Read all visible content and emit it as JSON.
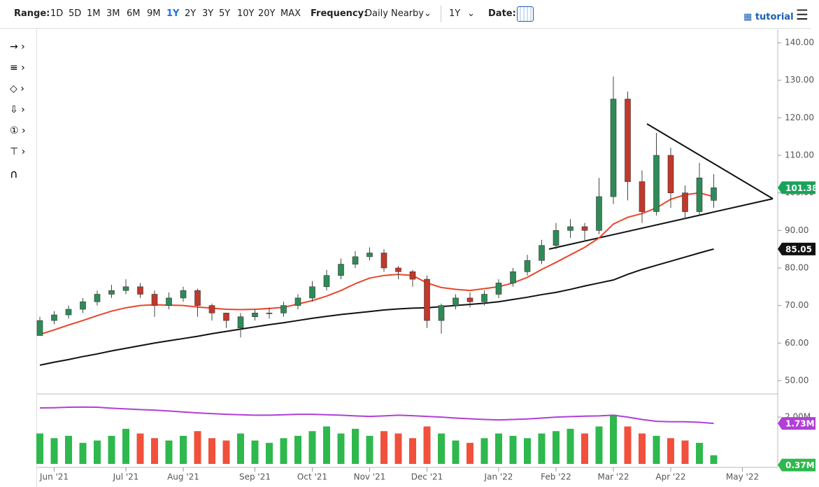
{
  "toolbar": {
    "range_label": "Range:",
    "ranges": [
      "1D",
      "5D",
      "1M",
      "3M",
      "6M",
      "9M",
      "1Y",
      "2Y",
      "3Y",
      "5Y",
      "10Y",
      "20Y",
      "MAX"
    ],
    "frequency_label": "Frequency:",
    "frequency": "Daily Nearby",
    "period": "1Y",
    "date_label": "Date:",
    "tutorial": "tutorial"
  },
  "chart_data": [
    {
      "type": "candlestick",
      "categories": [
        null,
        "Jun '21",
        null,
        null,
        null,
        null,
        "Jul '21",
        null,
        null,
        null,
        "Aug '21",
        null,
        null,
        null,
        null,
        "Sep '21",
        null,
        null,
        null,
        "Oct '21",
        null,
        null,
        null,
        "Nov '21",
        null,
        null,
        null,
        "Dec '21",
        null,
        null,
        null,
        null,
        "Jan '22",
        null,
        null,
        null,
        "Feb '22",
        null,
        null,
        null,
        "Mar '22",
        null,
        null,
        null,
        "Apr '22",
        null,
        null,
        null,
        null,
        "May '22"
      ],
      "open": [
        62,
        66,
        67.5,
        69,
        71,
        73,
        74,
        75,
        73,
        70,
        72,
        74,
        70,
        68,
        64,
        67,
        68,
        68,
        70,
        72,
        75,
        78,
        81,
        83,
        84,
        80,
        79,
        77,
        66,
        70,
        72,
        71,
        73,
        76,
        79,
        82,
        86,
        90,
        91,
        90,
        99,
        125,
        103,
        95,
        110,
        100,
        95,
        98,
        null,
        null
      ],
      "high": [
        67,
        68.5,
        70,
        72,
        74,
        75.5,
        77,
        76,
        74,
        73.5,
        75,
        74.5,
        70.5,
        68,
        68,
        69,
        69.5,
        71,
        73,
        76.5,
        79.5,
        82.5,
        84.5,
        85.5,
        85,
        80.5,
        79.5,
        78,
        70.5,
        73,
        73.5,
        74,
        77,
        80,
        83.5,
        87.5,
        92,
        93,
        92,
        104,
        131,
        127,
        106,
        116,
        112,
        102,
        108,
        105,
        null,
        null
      ],
      "low": [
        62,
        65,
        66.5,
        68,
        70,
        72,
        73,
        72,
        67,
        69,
        71,
        67,
        66,
        64,
        61.5,
        66,
        66.5,
        67,
        69,
        71,
        74,
        77,
        80,
        82,
        79,
        77,
        75,
        64,
        62.5,
        69,
        69.5,
        70,
        72,
        75,
        78,
        81,
        85,
        88,
        87,
        89,
        97,
        98,
        92,
        94,
        96,
        93,
        94,
        96,
        null,
        null
      ],
      "close": [
        66,
        67.5,
        69,
        71,
        73,
        74,
        75,
        73,
        70,
        72,
        74,
        70,
        68,
        66,
        67,
        68,
        68,
        70,
        72,
        75,
        78,
        81,
        83,
        84,
        80,
        79,
        77,
        66,
        70,
        72,
        71,
        73,
        76,
        79,
        82,
        86,
        90,
        91,
        90,
        99,
        125,
        103,
        95,
        110,
        100,
        95,
        104,
        101.38,
        null,
        null
      ],
      "series": [
        {
          "color": "#e8462a",
          "values": [
            62.3,
            63.5,
            64.8,
            66,
            67.3,
            68.5,
            69.4,
            70,
            70.2,
            70.1,
            70,
            69.6,
            69.3,
            69,
            68.9,
            69,
            69.2,
            69.5,
            70.4,
            71.3,
            72.5,
            74,
            75.8,
            77.3,
            78,
            78.3,
            78,
            76,
            74.8,
            74.3,
            74,
            74.5,
            75,
            76,
            77.5,
            79.6,
            81.5,
            83.5,
            85.5,
            88,
            91.7,
            93.5,
            94.5,
            96,
            98.3,
            99.5,
            100,
            99,
            null,
            null
          ]
        },
        {
          "color": "#111111",
          "values": [
            54.1,
            54.9,
            55.6,
            56.4,
            57.1,
            57.9,
            58.6,
            59.3,
            60,
            60.6,
            61.2,
            61.8,
            62.5,
            63.1,
            63.7,
            64.3,
            64.9,
            65.4,
            66,
            66.6,
            67.1,
            67.6,
            68,
            68.4,
            68.8,
            69.1,
            69.3,
            69.4,
            69.7,
            70,
            70.3,
            70.6,
            71,
            71.6,
            72.2,
            72.9,
            73.5,
            74.3,
            75.2,
            76,
            76.8,
            78.3,
            79.6,
            80.7,
            81.8,
            82.9,
            84,
            85.05,
            null,
            null
          ]
        }
      ],
      "up_color": "#2e8b57",
      "down_color": "#c0392b",
      "last_color": "#19a35a",
      "ylim": [
        47,
        143
      ],
      "yticks": [
        {
          "value": 50,
          "label": "50.00"
        },
        {
          "value": 60,
          "label": "60.00"
        },
        {
          "value": 70,
          "label": "70.00"
        },
        {
          "value": 80,
          "label": "80.00"
        },
        {
          "value": 90,
          "label": "90.00"
        },
        {
          "value": 100,
          "label": "100.00"
        },
        {
          "value": 110,
          "label": "110.00"
        },
        {
          "value": 120,
          "label": "120.00"
        },
        {
          "value": 130,
          "label": "130.00"
        },
        {
          "value": 140,
          "label": "140.00"
        }
      ]
    },
    {
      "type": "volume",
      "values": [
        1.3,
        1.1,
        1.2,
        0.9,
        1.0,
        1.2,
        1.5,
        1.3,
        1.1,
        1.0,
        1.2,
        1.4,
        1.1,
        1.0,
        1.3,
        1.0,
        0.9,
        1.1,
        1.2,
        1.4,
        1.6,
        1.3,
        1.5,
        1.2,
        1.4,
        1.3,
        1.1,
        1.6,
        1.3,
        1.0,
        0.9,
        1.1,
        1.3,
        1.2,
        1.1,
        1.3,
        1.4,
        1.5,
        1.3,
        1.6,
        2.1,
        1.6,
        1.3,
        1.2,
        1.1,
        1.0,
        0.9,
        0.37,
        null,
        null
      ],
      "value_labels": [
        null,
        null,
        null,
        null,
        null,
        null,
        null,
        null,
        null,
        null,
        null,
        null,
        null,
        null,
        null,
        null,
        null,
        null,
        null,
        null,
        null,
        null,
        null,
        null,
        null,
        null,
        null,
        null,
        null,
        null,
        null,
        null,
        null,
        null,
        null,
        null,
        null,
        null,
        null,
        null,
        null,
        null,
        null,
        null,
        null,
        null,
        null,
        "0.37M",
        null,
        null
      ],
      "up_color": "#2eb84d",
      "down_color": "#f0503c",
      "average": {
        "color": "#b03fd6",
        "values": [
          2.39,
          2.4,
          2.42,
          2.43,
          2.42,
          2.38,
          2.35,
          2.32,
          2.3,
          2.26,
          2.22,
          2.18,
          2.15,
          2.12,
          2.1,
          2.08,
          2.08,
          2.1,
          2.12,
          2.12,
          2.1,
          2.08,
          2.05,
          2.03,
          2.05,
          2.08,
          2.06,
          2.03,
          2.0,
          1.96,
          1.93,
          1.9,
          1.88,
          1.9,
          1.92,
          1.96,
          2.0,
          2.02,
          2.04,
          2.05,
          2.08,
          2.0,
          1.9,
          1.82,
          1.8,
          1.8,
          1.78,
          1.73,
          null,
          null
        ],
        "value_labels": [
          null,
          null,
          null,
          null,
          null,
          null,
          null,
          null,
          null,
          null,
          null,
          null,
          null,
          null,
          null,
          null,
          null,
          null,
          null,
          null,
          null,
          null,
          null,
          null,
          null,
          null,
          null,
          null,
          null,
          null,
          null,
          null,
          null,
          null,
          null,
          null,
          null,
          null,
          null,
          null,
          null,
          null,
          null,
          null,
          null,
          null,
          null,
          "1.73M",
          null,
          null
        ]
      },
      "ylim": [
        0,
        2.93
      ],
      "yticks": [
        {
          "value": 2,
          "label": "2.00M"
        }
      ]
    }
  ]
}
